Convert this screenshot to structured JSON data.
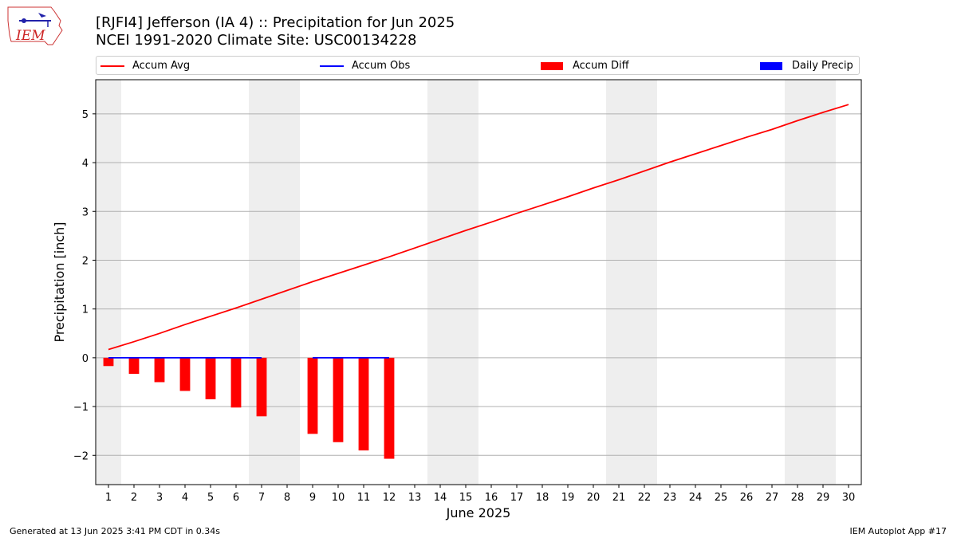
{
  "header": {
    "logo_text": "IEM",
    "title_line1": "[RJFI4] Jefferson (IA 4) :: Precipitation for Jun 2025",
    "title_line2": "NCEI 1991-2020 Climate Site: USC00134228"
  },
  "legend": {
    "placement": "top",
    "items": [
      {
        "label": "Accum Avg",
        "kind": "line",
        "color": "#ff0000"
      },
      {
        "label": "Accum Obs",
        "kind": "line",
        "color": "#0000ff"
      },
      {
        "label": "Accum Diff",
        "kind": "box",
        "color": "#ff0000"
      },
      {
        "label": "Daily Precip",
        "kind": "box",
        "color": "#0000ff"
      }
    ]
  },
  "footer": {
    "generated": "Generated at 13 Jun 2025 3:41 PM CDT in 0.34s",
    "app": "IEM Autoplot App #17"
  },
  "chart_data": {
    "type": "bar",
    "xlabel": "June 2025",
    "ylabel": "Precipitation [inch]",
    "xlim": [
      0.5,
      30.5
    ],
    "ylim": [
      -2.6,
      5.7
    ],
    "x_ticks": [
      1,
      2,
      3,
      4,
      5,
      6,
      7,
      8,
      9,
      10,
      11,
      12,
      13,
      14,
      15,
      16,
      17,
      18,
      19,
      20,
      21,
      22,
      23,
      24,
      25,
      26,
      27,
      28,
      29,
      30
    ],
    "y_ticks": [
      -2,
      -1,
      0,
      1,
      2,
      3,
      4,
      5
    ],
    "y_tick_labels": [
      "−2",
      "−1",
      "0",
      "1",
      "2",
      "3",
      "4",
      "5"
    ],
    "grid": "horizontal",
    "weekend_shading": [
      [
        0.5,
        1.5
      ],
      [
        6.5,
        8.5
      ],
      [
        13.5,
        15.5
      ],
      [
        20.5,
        22.5
      ],
      [
        27.5,
        29.5
      ]
    ],
    "series": [
      {
        "name": "Accum Avg",
        "type": "line",
        "color": "#ff0000",
        "x": [
          1,
          2,
          3,
          4,
          5,
          6,
          7,
          8,
          9,
          10,
          11,
          12,
          13,
          14,
          15,
          16,
          17,
          18,
          19,
          20,
          21,
          22,
          23,
          24,
          25,
          26,
          27,
          28,
          29,
          30
        ],
        "values": [
          0.17,
          0.33,
          0.5,
          0.68,
          0.85,
          1.02,
          1.2,
          1.38,
          1.56,
          1.73,
          1.9,
          2.07,
          2.25,
          2.43,
          2.61,
          2.78,
          2.96,
          3.13,
          3.3,
          3.48,
          3.65,
          3.83,
          4.01,
          4.18,
          4.35,
          4.52,
          4.68,
          4.86,
          5.03,
          5.19
        ]
      },
      {
        "name": "Accum Obs",
        "type": "line",
        "color": "#0000ff",
        "x": [
          1,
          2,
          3,
          4,
          5,
          6,
          7,
          9,
          10,
          11,
          12
        ],
        "values": [
          0,
          0,
          0,
          0,
          0,
          0,
          0,
          0,
          0,
          0,
          0
        ]
      },
      {
        "name": "Accum Diff",
        "type": "bar",
        "color": "#ff0000",
        "x": [
          1,
          2,
          3,
          4,
          5,
          6,
          7,
          9,
          10,
          11,
          12
        ],
        "values": [
          -0.17,
          -0.33,
          -0.5,
          -0.68,
          -0.85,
          -1.02,
          -1.2,
          -1.56,
          -1.73,
          -1.9,
          -2.07
        ]
      },
      {
        "name": "Daily Precip",
        "type": "bar",
        "color": "#0000ff",
        "x": [
          1,
          2,
          3,
          4,
          5,
          6,
          7,
          9,
          10,
          11,
          12
        ],
        "values": [
          0,
          0,
          0,
          0,
          0,
          0,
          0,
          0,
          0,
          0,
          0
        ]
      }
    ]
  }
}
